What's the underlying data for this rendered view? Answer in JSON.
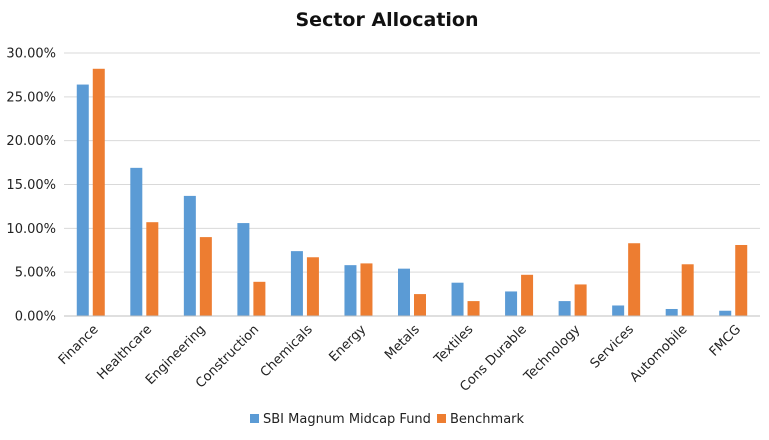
{
  "chart_data": {
    "type": "bar",
    "title": "Sector Allocation",
    "xlabel": "",
    "ylabel": "",
    "ylim": [
      0,
      30
    ],
    "yticks": [
      "0.00%",
      "5.00%",
      "10.00%",
      "15.00%",
      "20.00%",
      "25.00%",
      "30.00%"
    ],
    "grid": true,
    "legend_position": "bottom",
    "categories": [
      "Finance",
      "Healthcare",
      "Engineering",
      "Construction",
      "Chemicals",
      "Energy",
      "Metals",
      "Textiles",
      "Cons Durable",
      "Technology",
      "Services",
      "Automobile",
      "FMCG"
    ],
    "series": [
      {
        "name": "SBI Magnum Midcap Fund",
        "color": "#5b9bd5",
        "values": [
          26.4,
          16.9,
          13.7,
          10.6,
          7.4,
          5.8,
          5.4,
          3.8,
          2.8,
          1.7,
          1.2,
          0.8,
          0.6
        ]
      },
      {
        "name": "Benchmark",
        "color": "#ed7d31",
        "values": [
          28.2,
          10.7,
          9.0,
          3.9,
          6.7,
          6.0,
          2.5,
          1.7,
          4.7,
          3.6,
          8.3,
          5.9,
          8.1
        ]
      }
    ]
  }
}
